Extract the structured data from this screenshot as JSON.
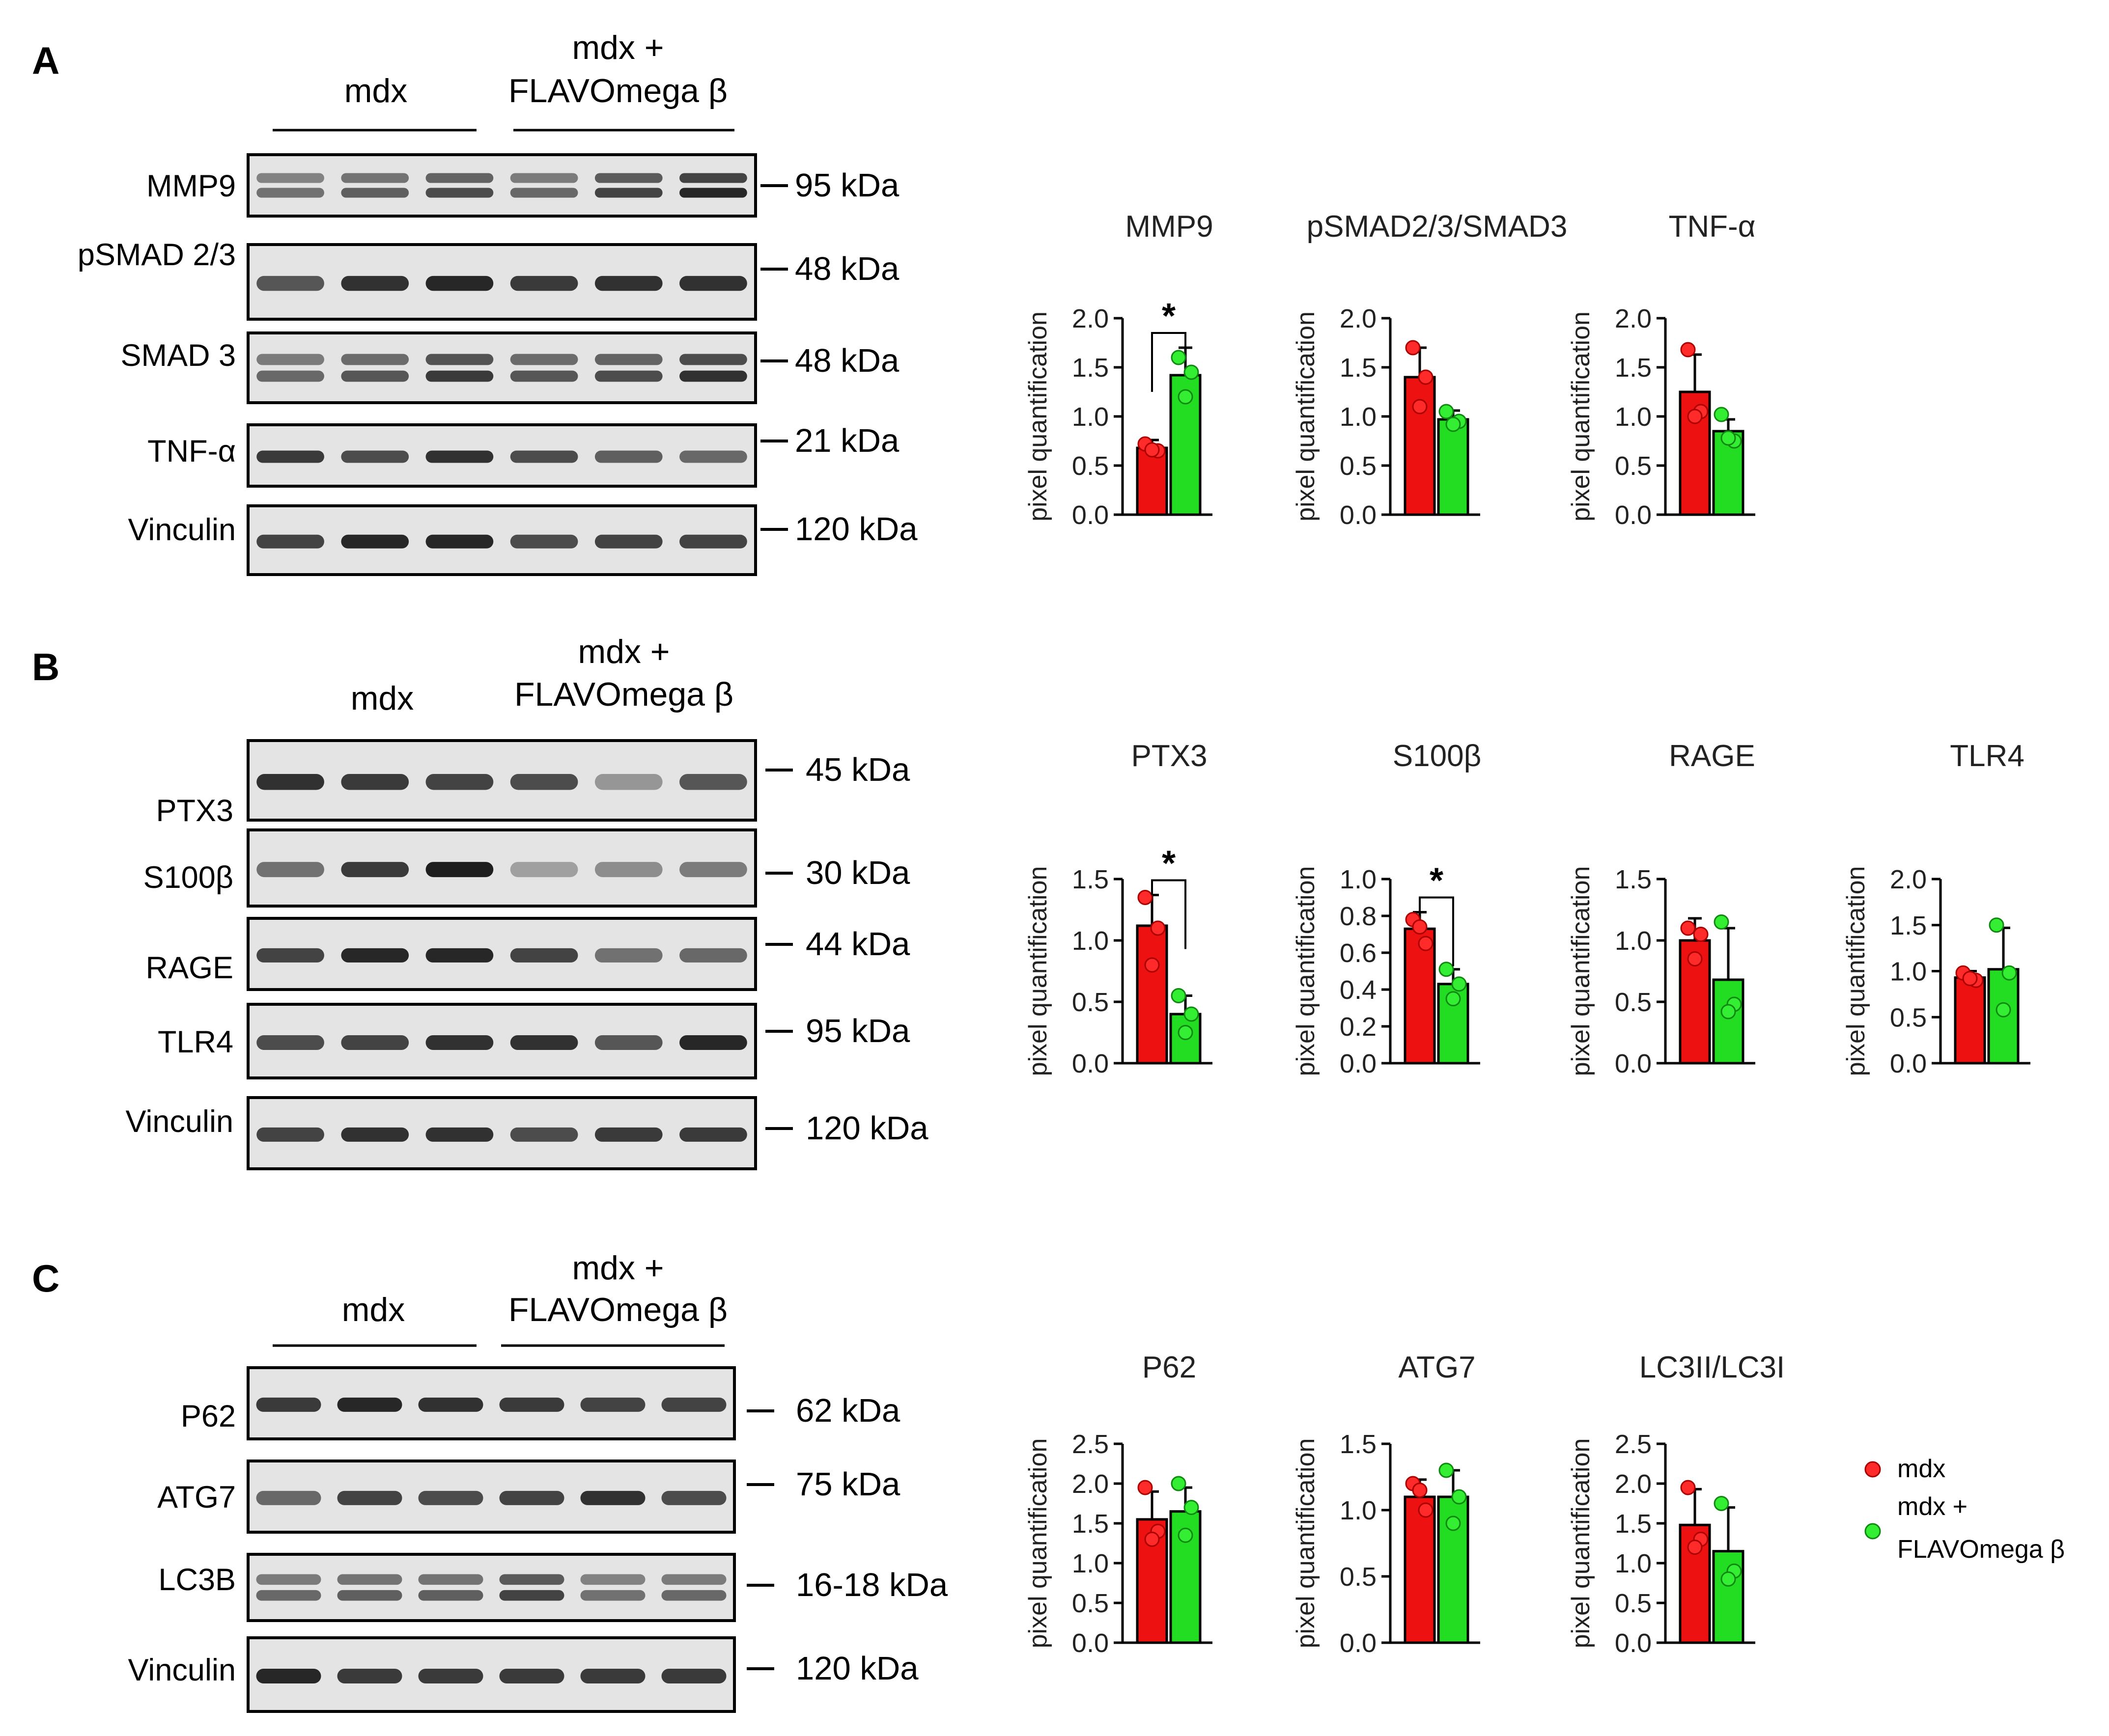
{
  "figure": {
    "groups": {
      "control": "mdx",
      "treated_line1": "mdx +",
      "treated_line2": "FLAVOmega β"
    },
    "colors": {
      "control": "#ee1111",
      "treated": "#22dd22",
      "control_point": "#ff2a2a",
      "treated_point": "#33ee33"
    },
    "legend": {
      "control": "mdx",
      "treated_line1": "mdx +",
      "treated_line2": "FLAVOmega β"
    },
    "panels": [
      {
        "letter": "A",
        "blots": [
          {
            "label": "MMP9",
            "kda": "95 kDa",
            "intensity": [
              0.55,
              0.65,
              0.75,
              0.6,
              0.8,
              0.95
            ]
          },
          {
            "label": "pSMAD 2/3",
            "kda": "48 kDa",
            "intensity": [
              0.7,
              0.9,
              0.95,
              0.85,
              0.9,
              0.9
            ]
          },
          {
            "label": "SMAD 3",
            "kda": "48 kDa",
            "intensity": [
              0.6,
              0.7,
              0.85,
              0.7,
              0.75,
              0.9
            ]
          },
          {
            "label": "TNF-α",
            "kda": "21 kDa",
            "intensity": [
              0.85,
              0.75,
              0.9,
              0.75,
              0.65,
              0.6
            ]
          },
          {
            "label": "Vinculin",
            "kda": "120 kDa",
            "intensity": [
              0.8,
              0.95,
              0.95,
              0.75,
              0.8,
              0.8
            ]
          }
        ]
      },
      {
        "letter": "B",
        "blots": [
          {
            "label": "PTX3",
            "kda": "45 kDa",
            "intensity": [
              0.9,
              0.85,
              0.8,
              0.75,
              0.35,
              0.7
            ]
          },
          {
            "label": "S100β",
            "kda": "30 kDa",
            "intensity": [
              0.55,
              0.85,
              1.0,
              0.3,
              0.4,
              0.5
            ]
          },
          {
            "label": "RAGE",
            "kda": "44 kDa",
            "intensity": [
              0.8,
              0.95,
              0.95,
              0.8,
              0.55,
              0.6
            ]
          },
          {
            "label": "TLR4",
            "kda": "95 kDa",
            "intensity": [
              0.75,
              0.8,
              0.9,
              0.9,
              0.7,
              0.95
            ]
          },
          {
            "label": "Vinculin",
            "kda": "120 kDa",
            "intensity": [
              0.8,
              0.9,
              0.9,
              0.75,
              0.85,
              0.85
            ]
          }
        ]
      },
      {
        "letter": "C",
        "blots": [
          {
            "label": "P62",
            "kda": "62 kDa",
            "intensity": [
              0.85,
              0.95,
              0.9,
              0.85,
              0.8,
              0.8
            ]
          },
          {
            "label": "ATG7",
            "kda": "75 kDa",
            "intensity": [
              0.6,
              0.8,
              0.75,
              0.8,
              0.9,
              0.75
            ]
          },
          {
            "label": "LC3B",
            "kda": "16-18 kDa",
            "intensity": [
              0.6,
              0.65,
              0.65,
              0.8,
              0.55,
              0.6
            ]
          },
          {
            "label": "Vinculin",
            "kda": "120 kDa",
            "intensity": [
              0.95,
              0.85,
              0.85,
              0.85,
              0.85,
              0.85
            ]
          }
        ]
      }
    ]
  },
  "chart_data": [
    {
      "type": "bar",
      "panel": "A",
      "title": "MMP9",
      "ylabel": "pixel quantification",
      "ylim": [
        0,
        2.0
      ],
      "yticks": [
        "0.0",
        "0.5",
        "1.0",
        "1.5",
        "2.0"
      ],
      "categories": [
        "mdx",
        "mdx + FLAVOmega β"
      ],
      "values": [
        0.68,
        1.42
      ],
      "errors": [
        0.08,
        0.28
      ],
      "points": [
        [
          0.72,
          0.65,
          0.66
        ],
        [
          1.6,
          1.45,
          1.2
        ]
      ],
      "significance": "*"
    },
    {
      "type": "bar",
      "panel": "A",
      "title": "pSMAD2/3/SMAD3",
      "ylabel": "pixel quantification",
      "ylim": [
        0,
        2.0
      ],
      "yticks": [
        "0.0",
        "0.5",
        "1.0",
        "1.5",
        "2.0"
      ],
      "categories": [
        "mdx",
        "mdx + FLAVOmega β"
      ],
      "values": [
        1.4,
        0.97
      ],
      "errors": [
        0.3,
        0.09
      ],
      "points": [
        [
          1.7,
          1.4,
          1.1
        ],
        [
          1.05,
          0.95,
          0.92
        ]
      ]
    },
    {
      "type": "bar",
      "panel": "A",
      "title": "TNF-α",
      "ylabel": "pixel quantification",
      "ylim": [
        0,
        2.0
      ],
      "yticks": [
        "0.0",
        "0.5",
        "1.0",
        "1.5",
        "2.0"
      ],
      "categories": [
        "mdx",
        "mdx + FLAVOmega β"
      ],
      "values": [
        1.25,
        0.85
      ],
      "errors": [
        0.38,
        0.12
      ],
      "points": [
        [
          1.68,
          1.05,
          1.0
        ],
        [
          1.02,
          0.75,
          0.78
        ]
      ]
    },
    {
      "type": "bar",
      "panel": "B",
      "title": "PTX3",
      "ylabel": "pixel quantification",
      "ylim": [
        0,
        1.5
      ],
      "yticks": [
        "0.0",
        "0.5",
        "1.0",
        "1.5"
      ],
      "categories": [
        "mdx",
        "mdx + FLAVOmega β"
      ],
      "values": [
        1.12,
        0.4
      ],
      "errors": [
        0.25,
        0.15
      ],
      "points": [
        [
          1.35,
          1.1,
          0.8
        ],
        [
          0.55,
          0.4,
          0.25
        ]
      ],
      "significance": "*"
    },
    {
      "type": "bar",
      "panel": "B",
      "title": "S100β",
      "ylabel": "pixel quantification",
      "ylim": [
        0,
        1.0
      ],
      "yticks": [
        "0.0",
        "0.2",
        "0.4",
        "0.6",
        "0.8",
        "1.0"
      ],
      "categories": [
        "mdx",
        "mdx + FLAVOmega β"
      ],
      "values": [
        0.73,
        0.43
      ],
      "errors": [
        0.09,
        0.08
      ],
      "points": [
        [
          0.78,
          0.65,
          0.74
        ],
        [
          0.51,
          0.43,
          0.35
        ]
      ],
      "significance": "*"
    },
    {
      "type": "bar",
      "panel": "B",
      "title": "RAGE",
      "ylabel": "pixel quantification",
      "ylim": [
        0,
        1.5
      ],
      "yticks": [
        "0.0",
        "0.5",
        "1.0",
        "1.5"
      ],
      "categories": [
        "mdx",
        "mdx + FLAVOmega β"
      ],
      "values": [
        1.0,
        0.68
      ],
      "errors": [
        0.18,
        0.42
      ],
      "points": [
        [
          1.1,
          1.05,
          0.85
        ],
        [
          1.15,
          0.48,
          0.42
        ]
      ]
    },
    {
      "type": "bar",
      "panel": "B",
      "title": "TLR4",
      "ylabel": "pixel quantification",
      "ylim": [
        0,
        2.0
      ],
      "yticks": [
        "0.0",
        "0.5",
        "1.0",
        "1.5",
        "2.0"
      ],
      "categories": [
        "mdx",
        "mdx + FLAVOmega β"
      ],
      "values": [
        0.93,
        1.02
      ],
      "errors": [
        0.07,
        0.45
      ],
      "points": [
        [
          0.98,
          0.9,
          0.92
        ],
        [
          1.5,
          0.98,
          0.58
        ]
      ]
    },
    {
      "type": "bar",
      "panel": "C",
      "title": "P62",
      "ylabel": "pixel quantification",
      "ylim": [
        0,
        2.5
      ],
      "yticks": [
        "0.0",
        "0.5",
        "1.0",
        "1.5",
        "2.0",
        "2.5"
      ],
      "categories": [
        "mdx",
        "mdx + FLAVOmega β"
      ],
      "values": [
        1.55,
        1.65
      ],
      "errors": [
        0.35,
        0.3
      ],
      "points": [
        [
          1.95,
          1.4,
          1.3
        ],
        [
          2.0,
          1.7,
          1.35
        ]
      ]
    },
    {
      "type": "bar",
      "panel": "C",
      "title": "ATG7",
      "ylabel": "pixel quantification",
      "ylim": [
        0,
        1.5
      ],
      "yticks": [
        "0.0",
        "0.5",
        "1.0",
        "1.5"
      ],
      "categories": [
        "mdx",
        "mdx + FLAVOmega β"
      ],
      "values": [
        1.1,
        1.1
      ],
      "errors": [
        0.13,
        0.2
      ],
      "points": [
        [
          1.2,
          1.0,
          1.15
        ],
        [
          1.3,
          1.1,
          0.9
        ]
      ]
    },
    {
      "type": "bar",
      "panel": "C",
      "title": "LC3II/LC3I",
      "ylabel": "pixel quantification",
      "ylim": [
        0,
        2.5
      ],
      "yticks": [
        "0.0",
        "0.5",
        "1.0",
        "1.5",
        "2.0",
        "2.5"
      ],
      "categories": [
        "mdx",
        "mdx + FLAVOmega β"
      ],
      "values": [
        1.48,
        1.15
      ],
      "errors": [
        0.45,
        0.55
      ],
      "points": [
        [
          1.95,
          1.3,
          1.2
        ],
        [
          1.75,
          0.9,
          0.8
        ]
      ]
    }
  ]
}
